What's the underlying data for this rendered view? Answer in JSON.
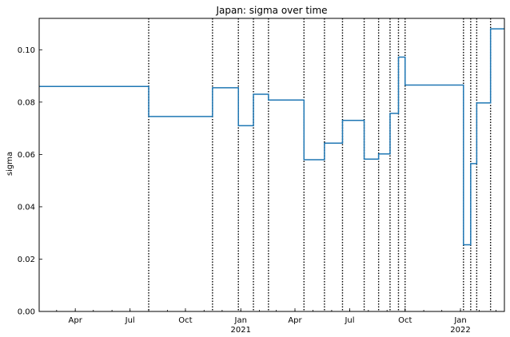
{
  "chart_data": {
    "type": "line",
    "title": "Japan: sigma over time",
    "xlabel": "",
    "ylabel": "sigma",
    "xlim": [
      "2020-02-01",
      "2022-03-15"
    ],
    "ylim": [
      0,
      0.112
    ],
    "x_ticks": [
      {
        "date": "2020-04-01",
        "label": "Apr",
        "sublabel": ""
      },
      {
        "date": "2020-07-01",
        "label": "Jul",
        "sublabel": ""
      },
      {
        "date": "2020-10-01",
        "label": "Oct",
        "sublabel": ""
      },
      {
        "date": "2021-01-01",
        "label": "Jan",
        "sublabel": "2021"
      },
      {
        "date": "2021-04-01",
        "label": "Apr",
        "sublabel": ""
      },
      {
        "date": "2021-07-01",
        "label": "Jul",
        "sublabel": ""
      },
      {
        "date": "2021-10-01",
        "label": "Oct",
        "sublabel": ""
      },
      {
        "date": "2022-01-01",
        "label": "Jan",
        "sublabel": "2022"
      }
    ],
    "y_ticks": [
      "0.00",
      "0.02",
      "0.04",
      "0.06",
      "0.08",
      "0.10"
    ],
    "line_color": "#1f77b4",
    "changepoint_style": "dotted black vertical lines",
    "changepoints": [
      "2020-08-01",
      "2020-11-15",
      "2020-12-28",
      "2021-01-22",
      "2021-02-16",
      "2021-04-16",
      "2021-05-20",
      "2021-06-19",
      "2021-07-25",
      "2021-08-18",
      "2021-09-06",
      "2021-09-20",
      "2021-10-01",
      "2022-01-06",
      "2022-01-18",
      "2022-01-28",
      "2022-02-20"
    ],
    "series": [
      {
        "name": "",
        "steps": [
          {
            "start": "2020-02-01",
            "value": 0.086
          },
          {
            "start": "2020-08-01",
            "value": 0.0745
          },
          {
            "start": "2020-11-15",
            "value": 0.0855
          },
          {
            "start": "2020-12-28",
            "value": 0.071
          },
          {
            "start": "2021-01-22",
            "value": 0.083
          },
          {
            "start": "2021-02-16",
            "value": 0.0808
          },
          {
            "start": "2021-04-16",
            "value": 0.058
          },
          {
            "start": "2021-05-20",
            "value": 0.0643
          },
          {
            "start": "2021-06-19",
            "value": 0.073
          },
          {
            "start": "2021-07-25",
            "value": 0.0582
          },
          {
            "start": "2021-08-18",
            "value": 0.0602
          },
          {
            "start": "2021-09-06",
            "value": 0.0757
          },
          {
            "start": "2021-09-20",
            "value": 0.0972
          },
          {
            "start": "2021-10-01",
            "value": 0.0865
          },
          {
            "start": "2022-01-06",
            "value": 0.0255
          },
          {
            "start": "2022-01-18",
            "value": 0.0565
          },
          {
            "start": "2022-01-28",
            "value": 0.0797
          },
          {
            "start": "2022-02-20",
            "value": 0.108
          }
        ],
        "end": "2022-03-15"
      }
    ],
    "grid": false,
    "legend": "none"
  }
}
